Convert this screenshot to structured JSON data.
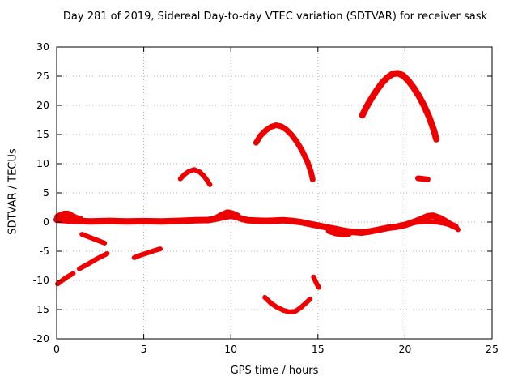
{
  "chart_data": {
    "type": "scatter",
    "title": "Day 281 of 2019, Sidereal Day-to-day VTEC variation (SDTVAR) for receiver sask",
    "xlabel": "GPS time / hours",
    "ylabel": "SDTVAR / TECUs",
    "xlim": [
      0,
      25
    ],
    "ylim": [
      -20,
      30
    ],
    "xticks": [
      0,
      5,
      10,
      15,
      20,
      25
    ],
    "yticks": [
      -20,
      -15,
      -10,
      -5,
      0,
      5,
      10,
      15,
      20,
      25,
      30
    ],
    "grid": true,
    "legend": "none",
    "point_color": "#ee0000",
    "grid_color": "#b5b5b5",
    "background": "#ffffff",
    "tracks": [
      {
        "name": "main-band",
        "width": 8,
        "points": [
          [
            0,
            0.4
          ],
          [
            0.5,
            0.3
          ],
          [
            1,
            0.2
          ],
          [
            2,
            0.1
          ],
          [
            3,
            0.2
          ],
          [
            4,
            0.1
          ],
          [
            5,
            0.15
          ],
          [
            6,
            0.1
          ],
          [
            7,
            0.2
          ],
          [
            8,
            0.3
          ],
          [
            8.7,
            0.35
          ],
          [
            9,
            0.5
          ],
          [
            9.5,
            0.8
          ],
          [
            10,
            1.1
          ],
          [
            10.3,
            0.9
          ],
          [
            10.7,
            0.5
          ],
          [
            11,
            0.3
          ],
          [
            11.5,
            0.25
          ],
          [
            12,
            0.2
          ],
          [
            12.5,
            0.25
          ],
          [
            13,
            0.3
          ],
          [
            13.5,
            0.2
          ],
          [
            14,
            0
          ],
          [
            14.5,
            -0.3
          ],
          [
            15,
            -0.6
          ],
          [
            15.5,
            -0.9
          ],
          [
            16,
            -1.2
          ],
          [
            16.5,
            -1.5
          ],
          [
            17,
            -1.7
          ],
          [
            17.5,
            -1.8
          ],
          [
            18,
            -1.6
          ],
          [
            18.5,
            -1.3
          ],
          [
            19,
            -1
          ],
          [
            19.5,
            -0.8
          ],
          [
            20,
            -0.5
          ],
          [
            20.5,
            0
          ],
          [
            21,
            0.6
          ],
          [
            21.3,
            1
          ],
          [
            21.6,
            1.1
          ],
          [
            22,
            0.7
          ],
          [
            22.3,
            0.2
          ],
          [
            22.6,
            -0.4
          ],
          [
            22.9,
            -0.8
          ]
        ]
      },
      {
        "name": "band-start-blob",
        "width": 8,
        "points": [
          [
            0.05,
            0.9
          ],
          [
            0.25,
            1.2
          ],
          [
            0.45,
            1.4
          ],
          [
            0.65,
            1.4
          ],
          [
            0.85,
            1.1
          ],
          [
            1.1,
            0.7
          ],
          [
            1.35,
            0.5
          ]
        ]
      },
      {
        "name": "band-bump-10",
        "width": 7,
        "points": [
          [
            9.2,
            0.8
          ],
          [
            9.5,
            1.3
          ],
          [
            9.8,
            1.7
          ],
          [
            10.1,
            1.5
          ],
          [
            10.4,
            1.1
          ]
        ]
      },
      {
        "name": "band-dip-16",
        "width": 6,
        "points": [
          [
            15.6,
            -1.6
          ],
          [
            16,
            -2
          ],
          [
            16.4,
            -2.2
          ],
          [
            16.8,
            -2.1
          ]
        ]
      },
      {
        "name": "band-flat-21",
        "width": 6,
        "points": [
          [
            20.3,
            -0.2
          ],
          [
            20.8,
            0
          ],
          [
            21.3,
            0.1
          ],
          [
            21.8,
            0
          ],
          [
            22.2,
            -0.2
          ],
          [
            22.6,
            -0.5
          ]
        ]
      },
      {
        "name": "rise-left-a",
        "width": 6,
        "points": [
          [
            0.05,
            -10.6
          ],
          [
            0.5,
            -9.6
          ],
          [
            0.95,
            -8.8
          ]
        ]
      },
      {
        "name": "rise-left-b",
        "width": 6,
        "points": [
          [
            1.3,
            -8
          ],
          [
            1.8,
            -7.2
          ],
          [
            2.3,
            -6.3
          ],
          [
            2.9,
            -5.4
          ]
        ]
      },
      {
        "name": "arc-2-down",
        "width": 6,
        "points": [
          [
            1.45,
            -2.1
          ],
          [
            1.8,
            -2.5
          ],
          [
            2.15,
            -2.9
          ],
          [
            2.5,
            -3.3
          ],
          [
            2.75,
            -3.6
          ]
        ]
      },
      {
        "name": "seg-5",
        "width": 6,
        "points": [
          [
            4.45,
            -6.1
          ],
          [
            4.8,
            -5.7
          ],
          [
            5.2,
            -5.3
          ],
          [
            5.6,
            -4.9
          ],
          [
            5.95,
            -4.6
          ]
        ]
      },
      {
        "name": "arc-8",
        "width": 6,
        "points": [
          [
            7.1,
            7.4
          ],
          [
            7.35,
            8.2
          ],
          [
            7.6,
            8.7
          ],
          [
            7.9,
            9
          ],
          [
            8.2,
            8.6
          ],
          [
            8.45,
            7.9
          ],
          [
            8.65,
            7.1
          ],
          [
            8.8,
            6.4
          ]
        ]
      },
      {
        "name": "arc-13-up",
        "width": 7,
        "points": [
          [
            11.45,
            13.6
          ],
          [
            11.7,
            14.8
          ],
          [
            12,
            15.7
          ],
          [
            12.3,
            16.3
          ],
          [
            12.6,
            16.6
          ],
          [
            12.9,
            16.4
          ],
          [
            13.2,
            15.8
          ],
          [
            13.5,
            14.9
          ],
          [
            13.8,
            13.7
          ],
          [
            14.1,
            12.2
          ],
          [
            14.4,
            10.3
          ],
          [
            14.6,
            8.6
          ],
          [
            14.7,
            7.3
          ]
        ]
      },
      {
        "name": "arc-13-down",
        "width": 6,
        "points": [
          [
            11.95,
            -12.9
          ],
          [
            12.3,
            -13.9
          ],
          [
            12.65,
            -14.6
          ],
          [
            13,
            -15.1
          ],
          [
            13.35,
            -15.4
          ],
          [
            13.7,
            -15.3
          ],
          [
            14,
            -14.7
          ],
          [
            14.3,
            -13.9
          ],
          [
            14.55,
            -13.2
          ]
        ]
      },
      {
        "name": "seg-15-vert",
        "width": 6,
        "points": [
          [
            14.75,
            -9.4
          ],
          [
            14.85,
            -10.1
          ],
          [
            14.95,
            -10.7
          ],
          [
            15.05,
            -11.2
          ]
        ]
      },
      {
        "name": "big-arc-19",
        "width": 8,
        "points": [
          [
            17.55,
            18.3
          ],
          [
            17.8,
            19.8
          ],
          [
            18.1,
            21.3
          ],
          [
            18.4,
            22.7
          ],
          [
            18.7,
            23.9
          ],
          [
            19,
            24.8
          ],
          [
            19.3,
            25.4
          ],
          [
            19.6,
            25.5
          ],
          [
            19.9,
            25.1
          ],
          [
            20.2,
            24.2
          ],
          [
            20.5,
            23
          ],
          [
            20.8,
            21.6
          ],
          [
            21.1,
            19.9
          ],
          [
            21.4,
            17.9
          ],
          [
            21.65,
            15.8
          ],
          [
            21.8,
            14.2
          ]
        ]
      },
      {
        "name": "seg-21-7",
        "width": 7,
        "points": [
          [
            20.75,
            7.5
          ],
          [
            21.05,
            7.4
          ],
          [
            21.3,
            7.3
          ]
        ]
      },
      {
        "name": "tail-23",
        "width": 6,
        "points": [
          [
            22.85,
            -0.6
          ],
          [
            22.95,
            -1
          ],
          [
            23.05,
            -1.3
          ]
        ]
      }
    ]
  }
}
